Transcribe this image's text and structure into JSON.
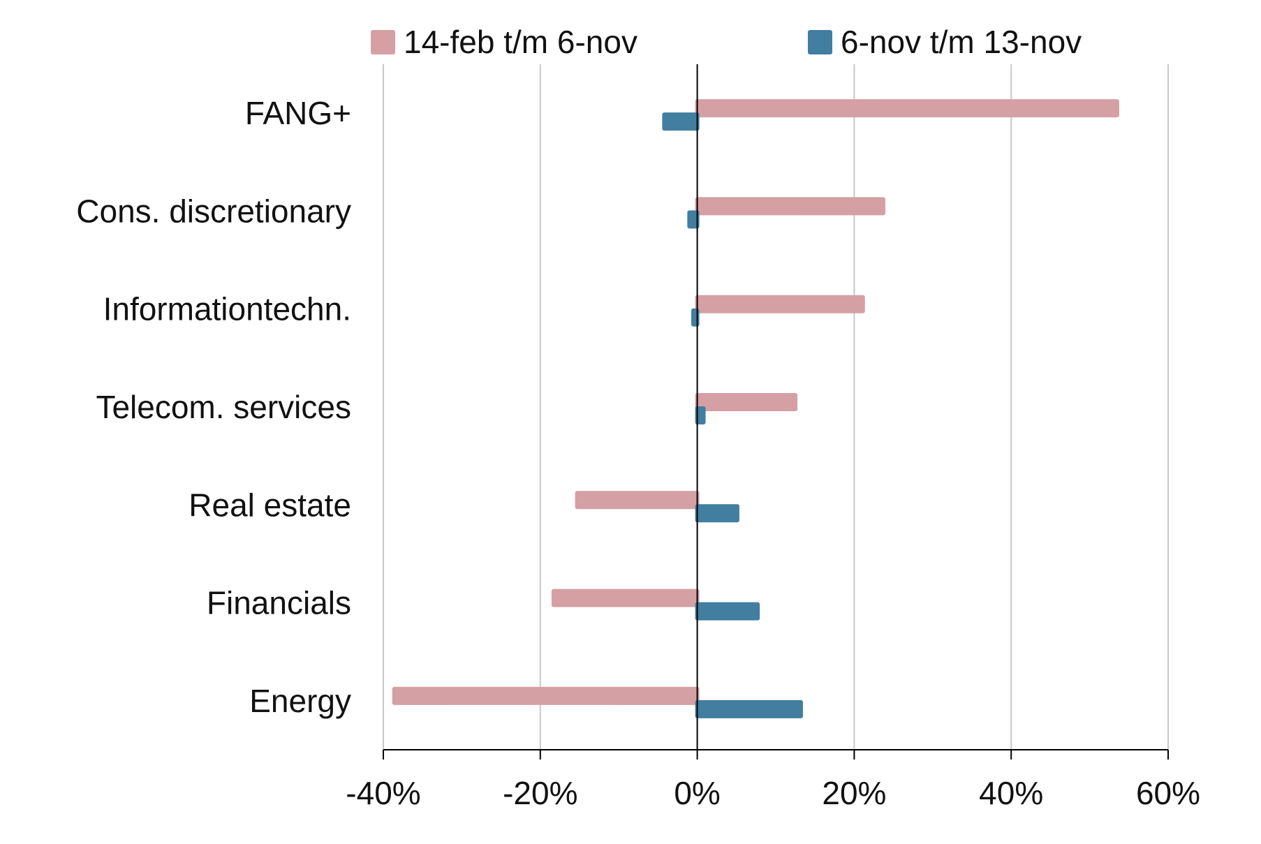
{
  "chart_data": {
    "type": "bar",
    "orientation": "horizontal",
    "categories": [
      "FANG+",
      "Cons. discretionary",
      "Informationtechn.",
      "Telecom. services",
      "Real estate",
      "Financials",
      "Energy"
    ],
    "series": [
      {
        "name": "14-feb t/m 6-nov",
        "color": "#d4a0a4",
        "values": [
          53.5,
          23.7,
          21.1,
          12.5,
          -15.3,
          -18.3,
          -38.6
        ]
      },
      {
        "name": "6-nov t/m 13-nov",
        "color": "#417ea0",
        "values": [
          -4.2,
          -1.0,
          -0.5,
          0.8,
          5.1,
          7.7,
          13.2
        ]
      }
    ],
    "xlim": [
      -40,
      60
    ],
    "xticks": [
      -40,
      -20,
      0,
      20,
      40,
      60
    ],
    "xtick_labels": [
      "-40%",
      "-20%",
      "0%",
      "20%",
      "40%",
      "60%"
    ],
    "grid": "vertical",
    "legend_position": "top",
    "title": "",
    "xlabel": "",
    "ylabel": ""
  }
}
